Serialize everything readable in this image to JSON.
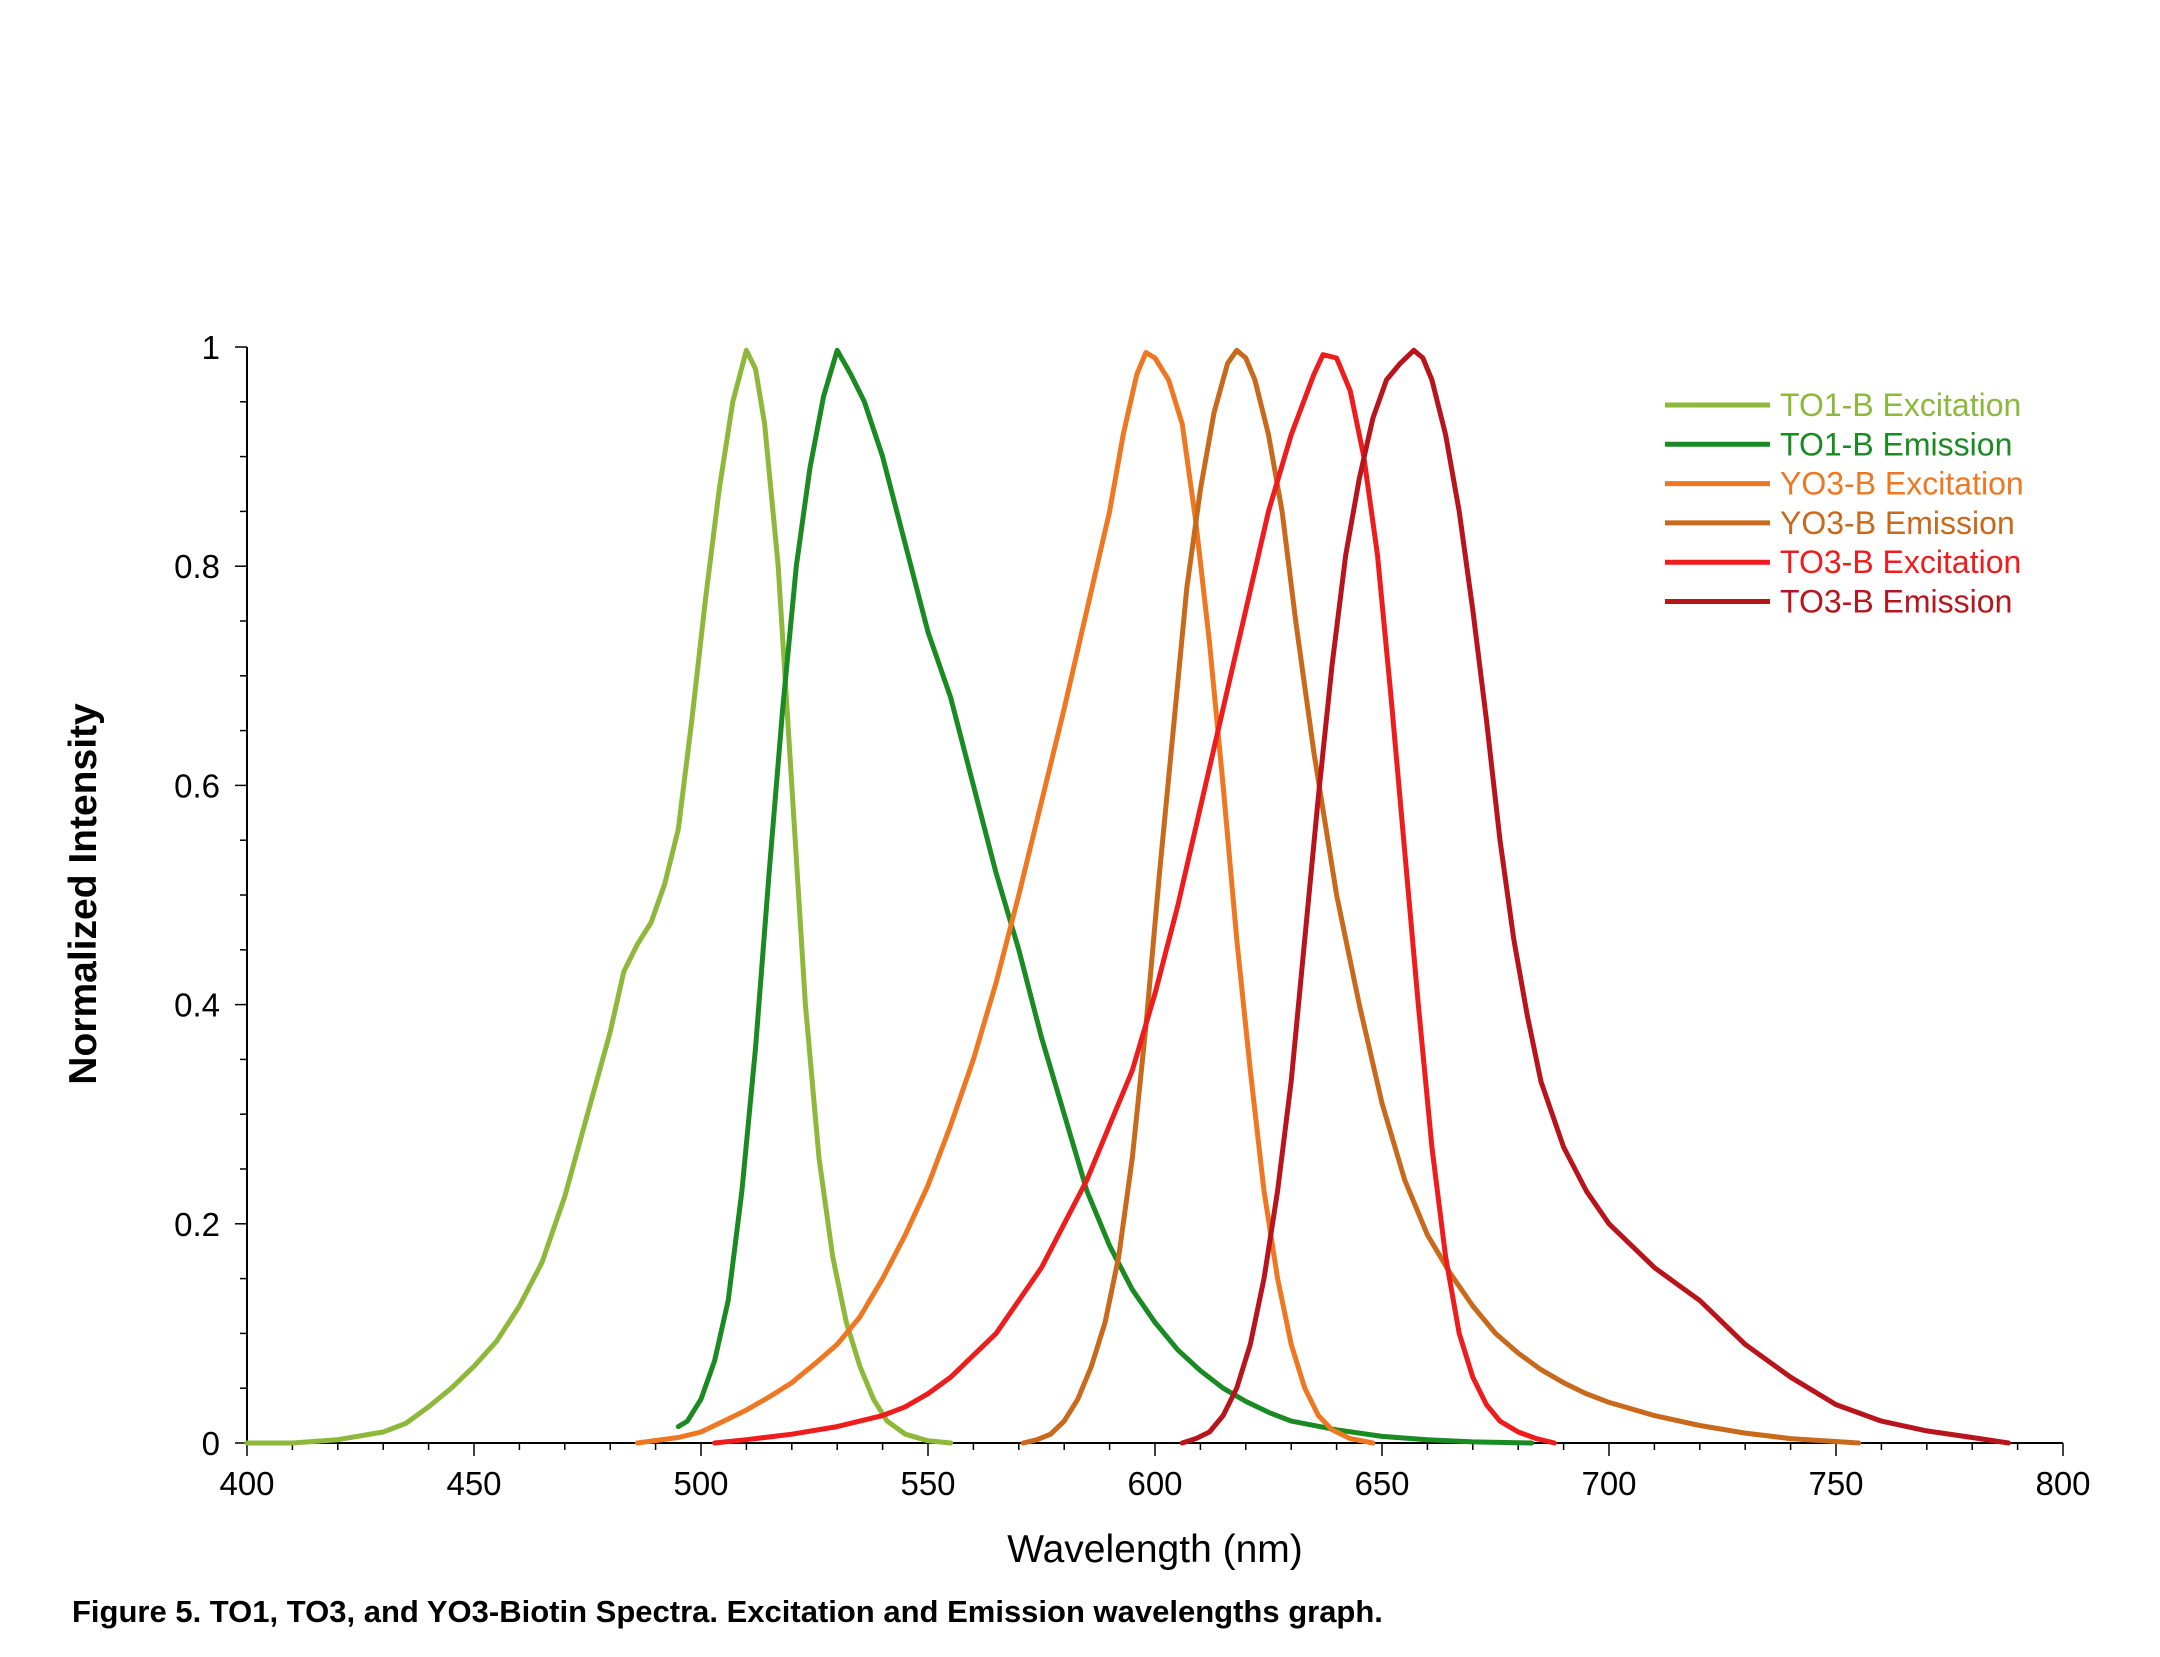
{
  "figure_caption": "Figure 5. TO1, TO3, and YO3-Biotin Spectra. Excitation and Emission wavelengths graph.",
  "chart_data": {
    "type": "line",
    "title": "",
    "xlabel": "Wavelength (nm)",
    "ylabel": "Normalized Intensity",
    "xlim": [
      400,
      800
    ],
    "ylim": [
      0,
      1
    ],
    "xticks": [
      400,
      450,
      500,
      550,
      600,
      650,
      700,
      750,
      800
    ],
    "yticks": [
      0,
      0.2,
      0.4,
      0.6,
      0.8,
      1
    ],
    "xtick_labels": [
      "400",
      "450",
      "500",
      "550",
      "600",
      "650",
      "700",
      "750",
      "800"
    ],
    "ytick_labels": [
      "0",
      "0.2",
      "0.4",
      "0.6",
      "0.8",
      "1"
    ],
    "grid": false,
    "legend_position": "top-right",
    "series": [
      {
        "name": "TO1-B Excitation",
        "color": "#8DB83A",
        "points": [
          [
            400,
            0
          ],
          [
            410,
            0
          ],
          [
            420,
            0.003
          ],
          [
            430,
            0.01
          ],
          [
            435,
            0.018
          ],
          [
            440,
            0.033
          ],
          [
            445,
            0.05
          ],
          [
            450,
            0.07
          ],
          [
            455,
            0.093
          ],
          [
            460,
            0.125
          ],
          [
            465,
            0.165
          ],
          [
            470,
            0.225
          ],
          [
            475,
            0.3
          ],
          [
            480,
            0.375
          ],
          [
            483,
            0.43
          ],
          [
            486,
            0.455
          ],
          [
            489,
            0.475
          ],
          [
            492,
            0.51
          ],
          [
            495,
            0.56
          ],
          [
            498,
            0.66
          ],
          [
            501,
            0.77
          ],
          [
            504,
            0.87
          ],
          [
            507,
            0.95
          ],
          [
            510,
            0.997
          ],
          [
            512,
            0.98
          ],
          [
            514,
            0.93
          ],
          [
            517,
            0.8
          ],
          [
            520,
            0.6
          ],
          [
            523,
            0.4
          ],
          [
            526,
            0.26
          ],
          [
            529,
            0.17
          ],
          [
            532,
            0.11
          ],
          [
            535,
            0.07
          ],
          [
            538,
            0.04
          ],
          [
            541,
            0.02
          ],
          [
            545,
            0.008
          ],
          [
            550,
            0.002
          ],
          [
            555,
            0
          ]
        ]
      },
      {
        "name": "TO1-B Emission",
        "color": "#1A8A22",
        "points": [
          [
            495,
            0.015
          ],
          [
            497,
            0.02
          ],
          [
            500,
            0.04
          ],
          [
            503,
            0.075
          ],
          [
            506,
            0.13
          ],
          [
            509,
            0.23
          ],
          [
            512,
            0.36
          ],
          [
            515,
            0.52
          ],
          [
            518,
            0.67
          ],
          [
            521,
            0.8
          ],
          [
            524,
            0.89
          ],
          [
            527,
            0.955
          ],
          [
            530,
            0.997
          ],
          [
            533,
            0.975
          ],
          [
            536,
            0.95
          ],
          [
            540,
            0.9
          ],
          [
            545,
            0.82
          ],
          [
            550,
            0.74
          ],
          [
            555,
            0.68
          ],
          [
            560,
            0.6
          ],
          [
            565,
            0.52
          ],
          [
            570,
            0.45
          ],
          [
            575,
            0.37
          ],
          [
            580,
            0.3
          ],
          [
            585,
            0.23
          ],
          [
            590,
            0.18
          ],
          [
            595,
            0.14
          ],
          [
            600,
            0.11
          ],
          [
            605,
            0.085
          ],
          [
            610,
            0.066
          ],
          [
            615,
            0.05
          ],
          [
            620,
            0.038
          ],
          [
            625,
            0.028
          ],
          [
            630,
            0.02
          ],
          [
            640,
            0.012
          ],
          [
            650,
            0.006
          ],
          [
            660,
            0.003
          ],
          [
            670,
            0.001
          ],
          [
            683,
            0
          ]
        ]
      },
      {
        "name": "YO3-B Excitation",
        "color": "#EE7722",
        "points": [
          [
            486,
            0
          ],
          [
            495,
            0.005
          ],
          [
            500,
            0.01
          ],
          [
            505,
            0.02
          ],
          [
            510,
            0.03
          ],
          [
            515,
            0.042
          ],
          [
            520,
            0.055
          ],
          [
            525,
            0.072
          ],
          [
            530,
            0.09
          ],
          [
            535,
            0.115
          ],
          [
            540,
            0.15
          ],
          [
            545,
            0.19
          ],
          [
            550,
            0.235
          ],
          [
            555,
            0.29
          ],
          [
            560,
            0.35
          ],
          [
            565,
            0.42
          ],
          [
            570,
            0.5
          ],
          [
            575,
            0.585
          ],
          [
            580,
            0.67
          ],
          [
            585,
            0.76
          ],
          [
            590,
            0.85
          ],
          [
            593,
            0.92
          ],
          [
            596,
            0.975
          ],
          [
            598,
            0.995
          ],
          [
            600,
            0.99
          ],
          [
            603,
            0.97
          ],
          [
            606,
            0.93
          ],
          [
            609,
            0.84
          ],
          [
            612,
            0.73
          ],
          [
            615,
            0.6
          ],
          [
            618,
            0.46
          ],
          [
            621,
            0.34
          ],
          [
            624,
            0.23
          ],
          [
            627,
            0.15
          ],
          [
            630,
            0.09
          ],
          [
            633,
            0.05
          ],
          [
            636,
            0.025
          ],
          [
            639,
            0.012
          ],
          [
            643,
            0.004
          ],
          [
            648,
            0
          ]
        ]
      },
      {
        "name": "YO3-B Emission",
        "color": "#C8691C",
        "points": [
          [
            571,
            0
          ],
          [
            574,
            0.003
          ],
          [
            577,
            0.008
          ],
          [
            580,
            0.02
          ],
          [
            583,
            0.04
          ],
          [
            586,
            0.07
          ],
          [
            589,
            0.11
          ],
          [
            592,
            0.17
          ],
          [
            595,
            0.26
          ],
          [
            598,
            0.38
          ],
          [
            601,
            0.52
          ],
          [
            604,
            0.65
          ],
          [
            607,
            0.78
          ],
          [
            610,
            0.87
          ],
          [
            613,
            0.94
          ],
          [
            616,
            0.985
          ],
          [
            618,
            0.997
          ],
          [
            620,
            0.99
          ],
          [
            622,
            0.97
          ],
          [
            625,
            0.92
          ],
          [
            628,
            0.85
          ],
          [
            631,
            0.75
          ],
          [
            635,
            0.63
          ],
          [
            640,
            0.5
          ],
          [
            645,
            0.4
          ],
          [
            650,
            0.31
          ],
          [
            655,
            0.24
          ],
          [
            660,
            0.19
          ],
          [
            665,
            0.155
          ],
          [
            670,
            0.125
          ],
          [
            675,
            0.1
          ],
          [
            680,
            0.082
          ],
          [
            685,
            0.067
          ],
          [
            690,
            0.055
          ],
          [
            695,
            0.045
          ],
          [
            700,
            0.037
          ],
          [
            710,
            0.025
          ],
          [
            720,
            0.016
          ],
          [
            730,
            0.009
          ],
          [
            740,
            0.004
          ],
          [
            755,
            0
          ]
        ]
      },
      {
        "name": "TO3-B Excitation",
        "color": "#EE1C1C",
        "points": [
          [
            503,
            0
          ],
          [
            510,
            0.003
          ],
          [
            520,
            0.008
          ],
          [
            530,
            0.015
          ],
          [
            540,
            0.025
          ],
          [
            545,
            0.033
          ],
          [
            550,
            0.045
          ],
          [
            555,
            0.06
          ],
          [
            560,
            0.08
          ],
          [
            565,
            0.1
          ],
          [
            570,
            0.13
          ],
          [
            575,
            0.16
          ],
          [
            580,
            0.2
          ],
          [
            585,
            0.24
          ],
          [
            590,
            0.29
          ],
          [
            595,
            0.34
          ],
          [
            600,
            0.41
          ],
          [
            605,
            0.49
          ],
          [
            610,
            0.58
          ],
          [
            615,
            0.67
          ],
          [
            620,
            0.76
          ],
          [
            625,
            0.85
          ],
          [
            630,
            0.92
          ],
          [
            635,
            0.975
          ],
          [
            637,
            0.993
          ],
          [
            640,
            0.99
          ],
          [
            643,
            0.96
          ],
          [
            646,
            0.9
          ],
          [
            649,
            0.81
          ],
          [
            652,
            0.68
          ],
          [
            655,
            0.54
          ],
          [
            658,
            0.4
          ],
          [
            661,
            0.27
          ],
          [
            664,
            0.17
          ],
          [
            667,
            0.1
          ],
          [
            670,
            0.06
          ],
          [
            673,
            0.035
          ],
          [
            676,
            0.02
          ],
          [
            680,
            0.01
          ],
          [
            684,
            0.004
          ],
          [
            688,
            0
          ]
        ]
      },
      {
        "name": "TO3-B Emission",
        "color": "#B8141C",
        "points": [
          [
            606,
            0
          ],
          [
            609,
            0.004
          ],
          [
            612,
            0.01
          ],
          [
            615,
            0.025
          ],
          [
            618,
            0.05
          ],
          [
            621,
            0.09
          ],
          [
            624,
            0.15
          ],
          [
            627,
            0.23
          ],
          [
            630,
            0.33
          ],
          [
            633,
            0.46
          ],
          [
            636,
            0.59
          ],
          [
            639,
            0.71
          ],
          [
            642,
            0.81
          ],
          [
            645,
            0.88
          ],
          [
            648,
            0.935
          ],
          [
            651,
            0.97
          ],
          [
            654,
            0.985
          ],
          [
            657,
            0.997
          ],
          [
            659,
            0.99
          ],
          [
            661,
            0.97
          ],
          [
            664,
            0.92
          ],
          [
            667,
            0.85
          ],
          [
            670,
            0.76
          ],
          [
            673,
            0.66
          ],
          [
            676,
            0.55
          ],
          [
            679,
            0.46
          ],
          [
            682,
            0.39
          ],
          [
            685,
            0.33
          ],
          [
            690,
            0.27
          ],
          [
            695,
            0.23
          ],
          [
            700,
            0.2
          ],
          [
            705,
            0.18
          ],
          [
            710,
            0.16
          ],
          [
            715,
            0.145
          ],
          [
            720,
            0.13
          ],
          [
            725,
            0.11
          ],
          [
            730,
            0.09
          ],
          [
            740,
            0.06
          ],
          [
            750,
            0.035
          ],
          [
            760,
            0.02
          ],
          [
            770,
            0.011
          ],
          [
            780,
            0.005
          ],
          [
            788,
            0
          ]
        ]
      }
    ]
  }
}
